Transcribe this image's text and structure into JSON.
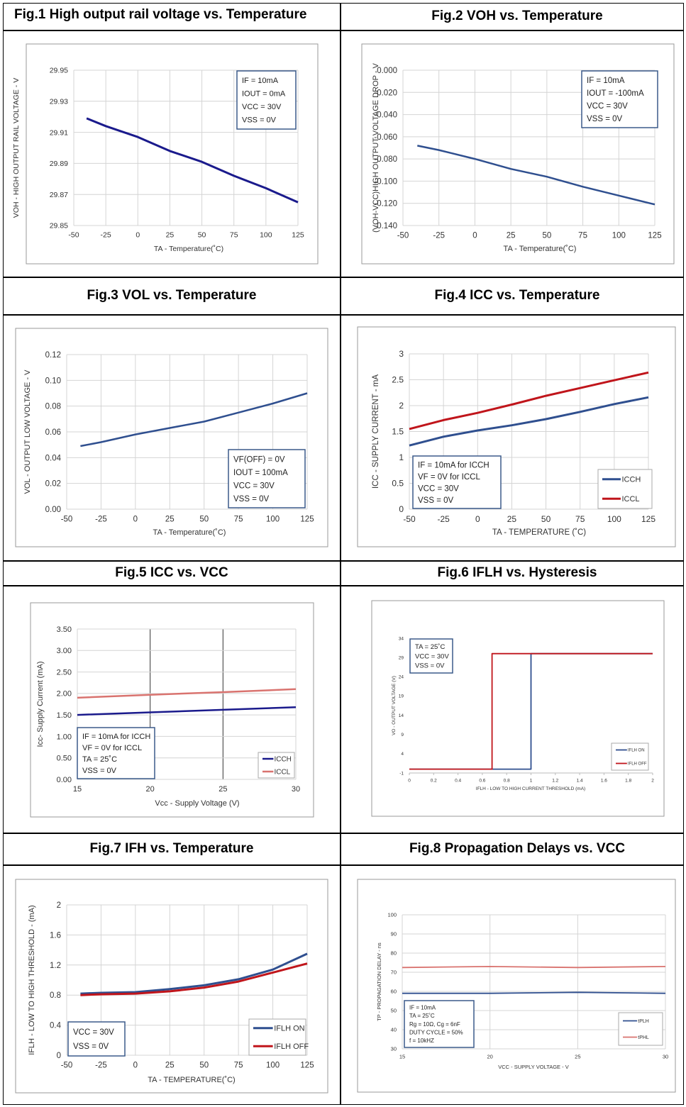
{
  "figure_titles": [
    "Fig.1 High output rail voltage vs. Temperature",
    "Fig.2 VOH vs. Temperature",
    "Fig.3 VOL vs. Temperature",
    "Fig.4 ICC vs. Temperature",
    "Fig.5 ICC vs. VCC",
    "Fig.6 IFLH vs. Hysteresis",
    "Fig.7 IFH vs. Temperature",
    "Fig.8 Propagation Delays vs. VCC"
  ],
  "colors": {
    "navy": "#1a1a8c",
    "blue": "#2f4f8f",
    "red": "#c0151b",
    "salmon": "#d9736f",
    "grid": "#d4d4d4",
    "dark_grid": "#333333"
  },
  "chart_data": [
    {
      "type": "line",
      "title": "Fig.1 High output rail voltage vs. Temperature",
      "xlabel": "TA - Temperature(˚C)",
      "ylabel": "VOH - HIGH OUTPUT RAIL VOLTAGE - V",
      "xlim": [
        -50,
        125
      ],
      "ylim": [
        29.85,
        29.95
      ],
      "x_ticks": [
        "-50",
        "-25",
        "0",
        "25",
        "50",
        "75",
        "100",
        "125"
      ],
      "y_ticks": [
        "29.85",
        "29.87",
        "29.89",
        "29.91",
        "29.93",
        "29.95"
      ],
      "grid": true,
      "annotation": [
        "IF = 10mA",
        "IOUT = 0mA",
        "VCC = 30V",
        "VSS = 0V"
      ],
      "series": [
        {
          "x": [
            -40,
            -25,
            0,
            25,
            50,
            75,
            100,
            125
          ],
          "y": [
            29.919,
            29.914,
            29.907,
            29.898,
            29.891,
            29.882,
            29.874,
            29.865
          ]
        }
      ]
    },
    {
      "type": "line",
      "title": "Fig.2 VOH vs. Temperature",
      "xlabel": "TA - Temperature(˚C)",
      "ylabel": "(VOH-VCC)HIGH OUTPUT VOLTAGE DROP - V",
      "xlim": [
        -50,
        125
      ],
      "ylim": [
        -0.14,
        0
      ],
      "x_ticks": [
        "-50",
        "-25",
        "0",
        "25",
        "50",
        "75",
        "100",
        "125"
      ],
      "y_ticks": [
        "-0.140",
        "-0.120",
        "-0.100",
        "-0.080",
        "-0.060",
        "-0.040",
        "-0.020",
        "0.000"
      ],
      "grid": true,
      "annotation": [
        "IF = 10mA",
        "IOUT = -100mA",
        "VCC = 30V",
        "VSS = 0V"
      ],
      "series": [
        {
          "x": [
            -40,
            -25,
            0,
            25,
            50,
            75,
            100,
            125
          ],
          "y": [
            -0.068,
            -0.072,
            -0.08,
            -0.089,
            -0.096,
            -0.105,
            -0.113,
            -0.121
          ]
        }
      ]
    },
    {
      "type": "line",
      "title": "Fig.3 VOL vs. Temperature",
      "xlabel": "TA - Temperature(˚C)",
      "ylabel": "VOL - OUTPUT LOW VOLTAGE - V",
      "xlim": [
        -50,
        125
      ],
      "ylim": [
        0,
        0.12
      ],
      "x_ticks": [
        "-50",
        "-25",
        "0",
        "25",
        "50",
        "75",
        "100",
        "125"
      ],
      "y_ticks": [
        "0.00",
        "0.02",
        "0.04",
        "0.06",
        "0.08",
        "0.10",
        "0.12"
      ],
      "grid": true,
      "annotation": [
        "VF(OFF) = 0V",
        "IOUT = 100mA",
        "VCC = 30V",
        "VSS = 0V"
      ],
      "series": [
        {
          "x": [
            -40,
            -25,
            0,
            25,
            50,
            75,
            100,
            125
          ],
          "y": [
            0.049,
            0.052,
            0.058,
            0.063,
            0.068,
            0.075,
            0.082,
            0.09
          ]
        }
      ]
    },
    {
      "type": "line",
      "title": "Fig.4 ICC vs. Temperature",
      "xlabel": "TA - TEMPERATURE (˚C)",
      "ylabel": "ICC - SUPPLY CURRENT - mA",
      "xlim": [
        -50,
        125
      ],
      "ylim": [
        0,
        3
      ],
      "x_ticks": [
        "-50",
        "-25",
        "0",
        "25",
        "50",
        "75",
        "100",
        "125"
      ],
      "y_ticks": [
        "0",
        "0.5",
        "1",
        "1.5",
        "2",
        "2.5",
        "3"
      ],
      "grid": true,
      "annotation": [
        "IF = 10mA for ICCH",
        "VF = 0V for ICCL",
        "VCC = 30V",
        "VSS = 0V"
      ],
      "legend": [
        "ICCH",
        "ICCL"
      ],
      "series": [
        {
          "name": "ICCH",
          "x": [
            -50,
            -25,
            0,
            25,
            50,
            75,
            100,
            125
          ],
          "y": [
            1.23,
            1.4,
            1.52,
            1.62,
            1.74,
            1.88,
            2.03,
            2.16
          ]
        },
        {
          "name": "ICCL",
          "x": [
            -50,
            -25,
            0,
            25,
            50,
            75,
            100,
            125
          ],
          "y": [
            1.55,
            1.72,
            1.86,
            2.02,
            2.19,
            2.34,
            2.49,
            2.64
          ]
        }
      ]
    },
    {
      "type": "line",
      "title": "Fig.5 ICC vs. VCC",
      "xlabel": "Vcc - Supply Voltage (V)",
      "ylabel": "Icc- Supply Current (mA)",
      "xlim": [
        15,
        30
      ],
      "ylim": [
        0,
        3.5
      ],
      "x_ticks": [
        "15",
        "20",
        "25",
        "30"
      ],
      "y_ticks": [
        "0.00",
        "0.50",
        "1.00",
        "1.50",
        "2.00",
        "2.50",
        "3.00",
        "3.50"
      ],
      "grid": true,
      "annotation": [
        "IF = 10mA for ICCH",
        "VF = 0V for ICCL",
        "TA = 25˚C",
        "VSS = 0V"
      ],
      "legend": [
        "ICCH",
        "ICCL"
      ],
      "series": [
        {
          "name": "ICCH",
          "x": [
            15,
            20,
            25,
            30
          ],
          "y": [
            1.5,
            1.56,
            1.62,
            1.68
          ]
        },
        {
          "name": "ICCL",
          "x": [
            15,
            20,
            25,
            30
          ],
          "y": [
            1.9,
            1.97,
            2.03,
            2.1
          ]
        }
      ]
    },
    {
      "type": "line",
      "title": "Fig.6 IFLH vs. Hysteresis",
      "xlabel": "IFLH - LOW TO HIGH CURRENT THRESHOLD (mA)",
      "ylabel": "VO - OUTPUT VOLTAGE (V)",
      "xlim": [
        0,
        2
      ],
      "ylim": [
        -1,
        34
      ],
      "x_ticks": [
        "0",
        "0.2",
        "0.4",
        "0.6",
        "0.8",
        "1",
        "1.2",
        "1.4",
        "1.6",
        "1.8",
        "2"
      ],
      "y_ticks": [
        "-1",
        "4",
        "9",
        "14",
        "19",
        "24",
        "29",
        "34"
      ],
      "grid": false,
      "annotation": [
        "TA = 25˚C",
        "VCC = 30V",
        "VSS = 0V"
      ],
      "legend": [
        "IFLH ON",
        "IFLH OFF"
      ],
      "series": [
        {
          "name": "IFLH ON",
          "x": [
            0,
            1.0,
            1.0,
            2.0
          ],
          "y": [
            0,
            0,
            30,
            30
          ]
        },
        {
          "name": "IFLH OFF",
          "x": [
            0,
            0.68,
            0.68,
            2.0
          ],
          "y": [
            0,
            0,
            30,
            30
          ]
        }
      ]
    },
    {
      "type": "line",
      "title": "Fig.7 IFH vs. Temperature",
      "xlabel": "TA - TEMPERATURE(˚C)",
      "ylabel": "IFLH - LOW TO HIGH THRESHOLD - (mA)",
      "xlim": [
        -50,
        125
      ],
      "ylim": [
        0,
        2
      ],
      "x_ticks": [
        "-50",
        "-25",
        "0",
        "25",
        "50",
        "75",
        "100",
        "125"
      ],
      "y_ticks": [
        "0",
        "0.4",
        "0.8",
        "1.2",
        "1.6",
        "2"
      ],
      "grid": true,
      "annotation": [
        "VCC = 30V",
        "VSS = 0V"
      ],
      "legend": [
        "IFLH ON",
        "IFLH OFF"
      ],
      "series": [
        {
          "name": "IFLH ON",
          "x": [
            -40,
            -25,
            0,
            25,
            50,
            75,
            100,
            125
          ],
          "y": [
            0.82,
            0.83,
            0.84,
            0.88,
            0.93,
            1.01,
            1.14,
            1.35
          ]
        },
        {
          "name": "IFLH OFF",
          "x": [
            -40,
            -25,
            0,
            25,
            50,
            75,
            100,
            125
          ],
          "y": [
            0.8,
            0.81,
            0.82,
            0.85,
            0.9,
            0.98,
            1.1,
            1.22
          ]
        }
      ]
    },
    {
      "type": "line",
      "title": "Fig.8 Propagation Delays vs. VCC",
      "xlabel": "VCC - SUPPLY VOLTAGE - V",
      "ylabel": "TP - PROPAGATION DELAY - ns",
      "xlim": [
        15,
        30
      ],
      "ylim": [
        30,
        100
      ],
      "x_ticks": [
        "15",
        "20",
        "25",
        "30"
      ],
      "y_ticks": [
        "30",
        "40",
        "50",
        "60",
        "70",
        "80",
        "90",
        "100"
      ],
      "grid": true,
      "annotation": [
        "IF = 10mA",
        "TA = 25˚C",
        "Rg = 10Ω, Cg = 6nF",
        "DUTY CYCLE = 50%",
        "f = 10kHZ"
      ],
      "legend": [
        "tPLH",
        "tPHL"
      ],
      "series": [
        {
          "name": "tPLH",
          "x": [
            15,
            20,
            25,
            30
          ],
          "y": [
            59,
            59,
            59.5,
            59
          ]
        },
        {
          "name": "tPHL",
          "x": [
            15,
            20,
            25,
            30
          ],
          "y": [
            72.5,
            73,
            72.5,
            73
          ]
        }
      ]
    }
  ]
}
